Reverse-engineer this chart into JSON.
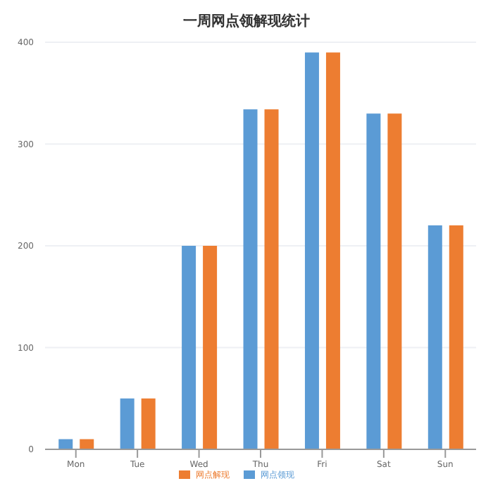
{
  "chart_data": {
    "type": "bar",
    "title": "一周网点领解现统计",
    "categories": [
      "Mon",
      "Tue",
      "Wed",
      "Thu",
      "Fri",
      "Sat",
      "Sun"
    ],
    "series": [
      {
        "name": "网点领现",
        "color": "#5b9bd5",
        "values": [
          10,
          50,
          200,
          334,
          390,
          330,
          220
        ]
      },
      {
        "name": "网点解现",
        "color": "#ed7d31",
        "values": [
          10,
          50,
          200,
          334,
          390,
          330,
          220
        ]
      }
    ],
    "ylim": [
      0,
      400
    ],
    "yticks": [
      0,
      100,
      200,
      300,
      400
    ],
    "grid": "y",
    "legend": "bottom"
  }
}
